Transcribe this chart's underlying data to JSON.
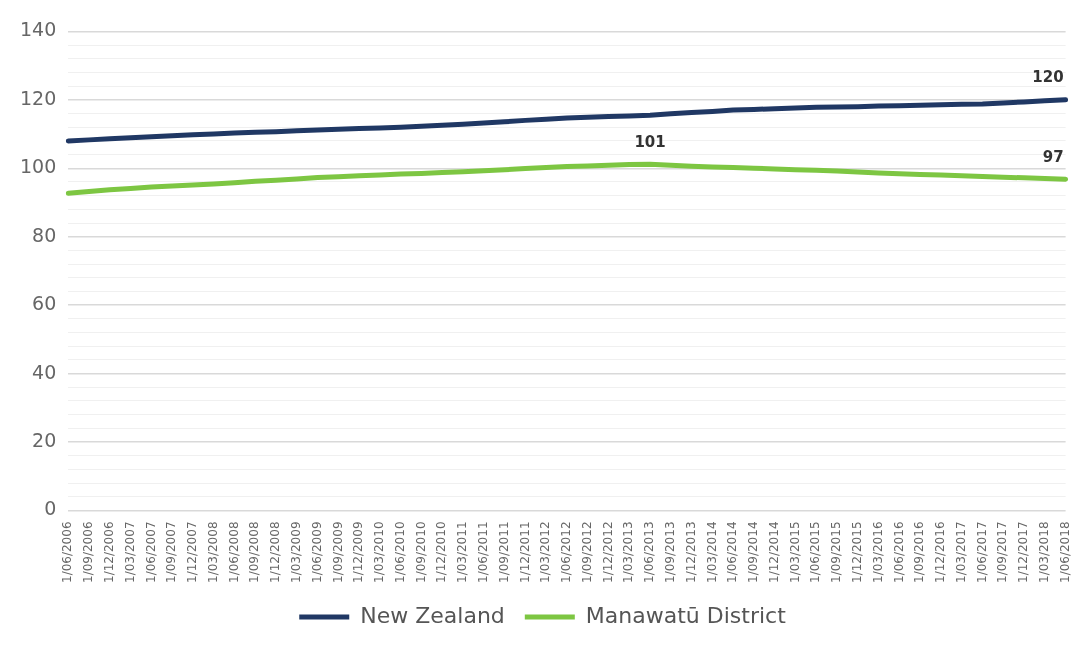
{
  "chart_data": {
    "type": "line",
    "categories": [
      "1/06/2006",
      "1/09/2006",
      "1/12/2006",
      "1/03/2007",
      "1/06/2007",
      "1/09/2007",
      "1/12/2007",
      "1/03/2008",
      "1/06/2008",
      "1/09/2008",
      "1/12/2008",
      "1/03/2009",
      "1/06/2009",
      "1/09/2009",
      "1/12/2009",
      "1/03/2010",
      "1/06/2010",
      "1/09/2010",
      "1/12/2010",
      "1/03/2011",
      "1/06/2011",
      "1/09/2011",
      "1/12/2011",
      "1/03/2012",
      "1/06/2012",
      "1/09/2012",
      "1/12/2012",
      "1/03/2013",
      "1/06/2013",
      "1/09/2013",
      "1/12/2013",
      "1/03/2014",
      "1/06/2014",
      "1/09/2014",
      "1/12/2014",
      "1/03/2015",
      "1/06/2015",
      "1/09/2015",
      "1/12/2015",
      "1/03/2016",
      "1/06/2016",
      "1/09/2016",
      "1/12/2016",
      "1/03/2017",
      "1/06/2017",
      "1/09/2017",
      "1/12/2017",
      "1/03/2018",
      "1/06/2018"
    ],
    "series": [
      {
        "name": "New Zealand",
        "color": "#203864",
        "values": [
          108.0,
          108.3,
          108.6,
          108.9,
          109.2,
          109.5,
          109.8,
          110.0,
          110.3,
          110.5,
          110.7,
          111.0,
          111.2,
          111.4,
          111.6,
          111.8,
          112.0,
          112.3,
          112.6,
          112.9,
          113.2,
          113.6,
          114.0,
          114.3,
          114.7,
          114.9,
          115.1,
          115.3,
          115.5,
          115.9,
          116.3,
          116.6,
          117.0,
          117.2,
          117.4,
          117.6,
          117.8,
          117.9,
          118.0,
          118.2,
          118.3,
          118.4,
          118.6,
          118.7,
          118.8,
          119.1,
          119.4,
          119.7,
          120.0
        ],
        "value_labels": [
          null,
          null,
          null,
          null,
          null,
          null,
          null,
          null,
          null,
          null,
          null,
          null,
          null,
          null,
          null,
          null,
          null,
          null,
          null,
          null,
          null,
          null,
          null,
          null,
          null,
          null,
          null,
          null,
          null,
          null,
          null,
          null,
          null,
          null,
          null,
          null,
          null,
          null,
          null,
          null,
          null,
          null,
          null,
          null,
          null,
          null,
          null,
          null,
          "120"
        ]
      },
      {
        "name": "Manawatū District",
        "color": "#7dc642",
        "values": [
          92.7,
          93.2,
          93.7,
          94.1,
          94.5,
          94.8,
          95.1,
          95.4,
          95.8,
          96.2,
          96.5,
          96.9,
          97.3,
          97.5,
          97.8,
          98.0,
          98.3,
          98.5,
          98.8,
          99.0,
          99.3,
          99.6,
          99.9,
          100.2,
          100.5,
          100.7,
          100.9,
          101.1,
          101.2,
          100.9,
          100.6,
          100.4,
          100.2,
          100.0,
          99.8,
          99.6,
          99.4,
          99.2,
          98.9,
          98.6,
          98.4,
          98.2,
          98.0,
          97.8,
          97.6,
          97.4,
          97.2,
          97.0,
          96.8
        ],
        "value_labels": [
          null,
          null,
          null,
          null,
          null,
          null,
          null,
          null,
          null,
          null,
          null,
          null,
          null,
          null,
          null,
          null,
          null,
          null,
          null,
          null,
          null,
          null,
          null,
          null,
          null,
          null,
          null,
          null,
          "101",
          null,
          null,
          null,
          null,
          null,
          null,
          null,
          null,
          null,
          null,
          null,
          null,
          null,
          null,
          null,
          null,
          null,
          null,
          null,
          "97"
        ]
      }
    ],
    "ylim": [
      0,
      140
    ],
    "yticks": [
      0,
      {
        "value": 4,
        "label": null
      },
      {
        "value": 8,
        "label": null
      },
      {
        "value": 12,
        "label": null
      },
      {
        "value": 16,
        "label": null
      },
      20,
      {
        "value": 24,
        "label": null
      },
      {
        "value": 28,
        "label": null
      },
      {
        "value": 32,
        "label": null
      },
      {
        "value": 36,
        "label": null
      },
      40,
      {
        "value": 44,
        "label": null
      },
      {
        "value": 48,
        "label": null
      },
      {
        "value": 52,
        "label": null
      },
      {
        "value": 56,
        "label": null
      },
      60,
      {
        "value": 64,
        "label": null
      },
      {
        "value": 68,
        "label": null
      },
      {
        "value": 72,
        "label": null
      },
      {
        "value": 76,
        "label": null
      },
      80,
      {
        "value": 84,
        "label": null
      },
      {
        "value": 88,
        "label": null
      },
      {
        "value": 92,
        "label": null
      },
      {
        "value": 96,
        "label": null
      },
      100,
      {
        "value": 104,
        "label": null
      },
      {
        "value": 108,
        "label": null
      },
      {
        "value": 112,
        "label": null
      },
      {
        "value": 116,
        "label": null
      },
      120,
      {
        "value": 124,
        "label": null
      },
      {
        "value": 128,
        "label": null
      },
      {
        "value": 132,
        "label": null
      },
      {
        "value": 136,
        "label": null
      },
      140
    ],
    "grid": "y",
    "legend": "bottom",
    "marker": "none",
    "line_style": "solid"
  }
}
